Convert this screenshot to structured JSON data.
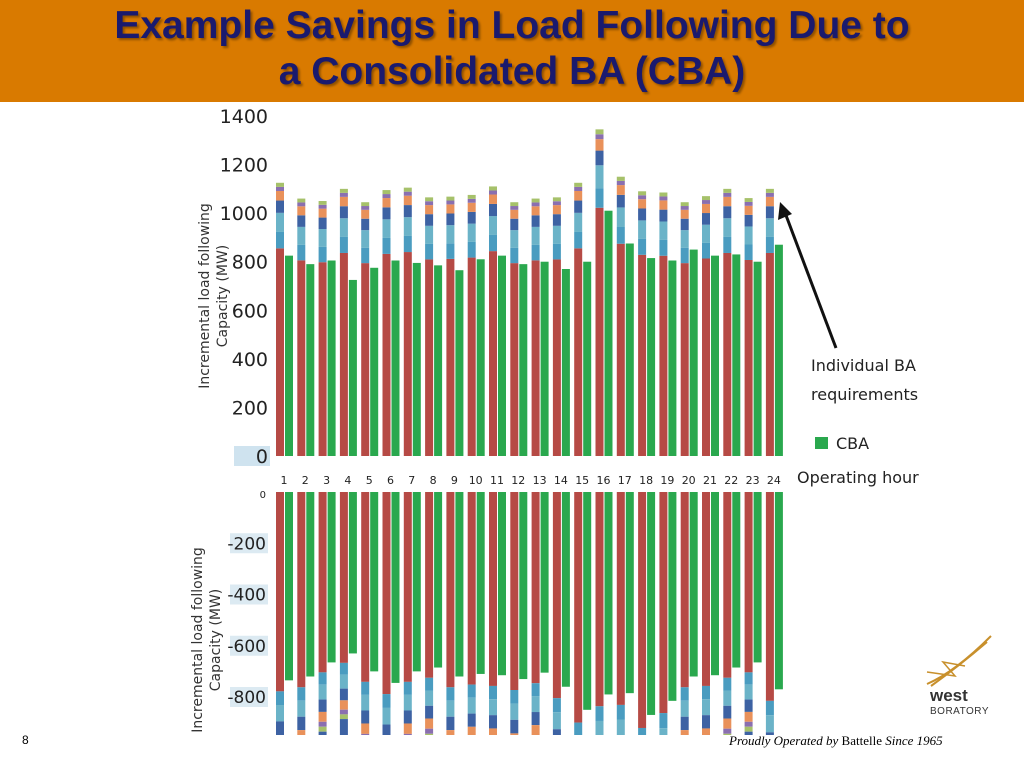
{
  "slide": {
    "title_line1": "Example Savings in Load Following Due to",
    "title_line2": "a Consolidated BA (CBA)",
    "slide_number": "8",
    "footer_italic1": "Proudly Operated by ",
    "footer_brand": "Battelle",
    "footer_italic2": " Since 1965",
    "logo_text1": "west",
    "logo_text2": "BORATORY"
  },
  "legend": {
    "individual_line1": "Individual BA",
    "individual_line2": "requirements",
    "cba_label": "CBA",
    "x_label": "Operating hour"
  },
  "colors": {
    "title_bg": "#d97a00",
    "title_text": "#1a1a6e",
    "ba_red": "#b64a45",
    "ba_blue": "#4a9cc0",
    "ba_navy": "#3d62a3",
    "ba_orange": "#e9915a",
    "ba_teal": "#6bb3c8",
    "ba_purple": "#8a6fb0",
    "ba_green": "#a6c16a",
    "cba_green": "#2aa84e"
  },
  "chart_data": [
    {
      "type": "bar",
      "ylabel": "Incremental load following Capacity (MW)",
      "ylim": [
        0,
        1400
      ],
      "yticks": [
        "0",
        "200",
        "400",
        "600",
        "800",
        "1000",
        "1200",
        "1400"
      ],
      "categories": [
        "1",
        "2",
        "3",
        "4",
        "5",
        "6",
        "7",
        "8",
        "9",
        "10",
        "11",
        "12",
        "13",
        "14",
        "15",
        "16",
        "17",
        "18",
        "19",
        "20",
        "21",
        "22",
        "23",
        "24"
      ],
      "series": [
        {
          "name": "Individual BA requirements",
          "values": [
            1125,
            1060,
            1050,
            1100,
            1045,
            1095,
            1105,
            1065,
            1068,
            1075,
            1110,
            1045,
            1060,
            1065,
            1125,
            1345,
            1150,
            1090,
            1085,
            1045,
            1070,
            1100,
            1062,
            1100
          ]
        },
        {
          "name": "CBA",
          "values": [
            825,
            790,
            805,
            725,
            775,
            805,
            795,
            785,
            765,
            810,
            825,
            790,
            800,
            770,
            800,
            1010,
            875,
            815,
            805,
            850,
            825,
            830,
            800,
            870
          ]
        }
      ]
    },
    {
      "type": "bar",
      "ylabel": "Incremental load following Capacity (MW)",
      "yticks": [
        "0",
        "-200",
        "-400",
        "-600",
        "-800"
      ],
      "categories": [
        "1",
        "2",
        "3",
        "4",
        "5",
        "6",
        "7",
        "8",
        "9",
        "10",
        "11",
        "12",
        "13",
        "14",
        "15",
        "16",
        "17",
        "18",
        "19",
        "20",
        "21",
        "22",
        "23",
        "24"
      ],
      "series": [
        {
          "name": "Individual BA requirements"
        },
        {
          "name": "CBA",
          "values": [
            -735,
            -720,
            -665,
            -630,
            -700,
            -745,
            -700,
            -685,
            -720,
            -710,
            -715,
            -730,
            -705,
            -760,
            -850,
            -790,
            -785,
            -870,
            -815,
            -720,
            -715,
            -685,
            -665,
            -770
          ]
        }
      ]
    }
  ]
}
